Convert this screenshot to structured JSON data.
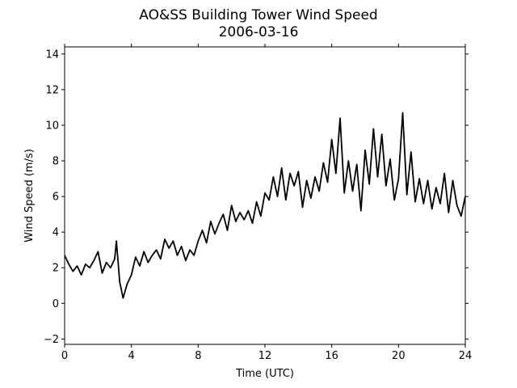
{
  "chart_data": {
    "type": "line",
    "title": "AO&SS Building Tower Wind Speed",
    "subtitle": "2006-03-16",
    "xlabel": "Time (UTC)",
    "ylabel": "Wind Speed (m/s)",
    "xlim": [
      0,
      24
    ],
    "ylim": [
      -2.3,
      14.4
    ],
    "x_ticks": [
      0,
      4,
      8,
      12,
      16,
      20,
      24
    ],
    "y_ticks": [
      -2,
      0,
      2,
      4,
      6,
      8,
      10,
      12,
      14
    ],
    "grid": false,
    "line_color": "#000000",
    "series": [
      {
        "x": [
          0,
          0.25,
          0.5,
          0.75,
          1.0,
          1.25,
          1.5,
          1.75,
          2.0,
          2.25,
          2.5,
          2.75,
          3.0,
          3.1,
          3.3,
          3.5,
          3.75,
          4.0,
          4.25,
          4.5,
          4.75,
          5.0,
          5.25,
          5.5,
          5.75,
          6.0,
          6.25,
          6.5,
          6.75,
          7.0,
          7.25,
          7.5,
          7.75,
          8.0,
          8.25,
          8.5,
          8.75,
          9.0,
          9.25,
          9.5,
          9.75,
          10.0,
          10.25,
          10.5,
          10.75,
          11.0,
          11.25,
          11.5,
          11.75,
          12.0,
          12.25,
          12.5,
          12.75,
          13.0,
          13.25,
          13.5,
          13.75,
          14.0,
          14.25,
          14.5,
          14.75,
          15.0,
          15.25,
          15.5,
          15.75,
          16.0,
          16.25,
          16.5,
          16.75,
          17.0,
          17.25,
          17.5,
          17.75,
          18.0,
          18.25,
          18.5,
          18.75,
          19.0,
          19.25,
          19.5,
          19.75,
          20.0,
          20.25,
          20.5,
          20.75,
          21.0,
          21.25,
          21.5,
          21.75,
          22.0,
          22.25,
          22.5,
          22.75,
          23.0,
          23.25,
          23.5,
          23.75,
          24.0
        ],
        "values": [
          2.7,
          2.2,
          1.8,
          2.1,
          1.6,
          2.2,
          2.0,
          2.4,
          2.9,
          1.7,
          2.3,
          2.0,
          2.5,
          3.5,
          1.2,
          0.3,
          1.1,
          1.6,
          2.6,
          2.1,
          2.9,
          2.3,
          2.7,
          3.0,
          2.5,
          3.6,
          3.1,
          3.5,
          2.7,
          3.2,
          2.4,
          3.0,
          2.7,
          3.5,
          4.1,
          3.4,
          4.6,
          3.9,
          4.5,
          5.0,
          4.1,
          5.5,
          4.6,
          5.1,
          4.7,
          5.2,
          4.5,
          5.7,
          4.9,
          6.2,
          5.8,
          7.1,
          6.0,
          7.6,
          5.8,
          7.3,
          6.6,
          7.4,
          5.4,
          6.9,
          5.9,
          7.1,
          6.3,
          7.9,
          6.8,
          9.2,
          7.3,
          10.4,
          6.2,
          8.0,
          6.3,
          7.8,
          5.2,
          8.6,
          6.7,
          9.8,
          7.1,
          9.5,
          6.6,
          8.1,
          5.8,
          7.0,
          10.7,
          6.1,
          8.5,
          5.7,
          7.0,
          5.6,
          6.9,
          5.3,
          6.5,
          5.6,
          7.3,
          5.1,
          6.9,
          5.5,
          4.9,
          6.0
        ]
      }
    ]
  }
}
